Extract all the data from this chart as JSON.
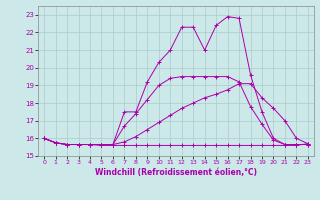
{
  "xlabel": "Windchill (Refroidissement éolien,°C)",
  "xlim": [
    -0.5,
    23.5
  ],
  "ylim": [
    15.0,
    23.5
  ],
  "yticks": [
    15,
    16,
    17,
    18,
    19,
    20,
    21,
    22,
    23
  ],
  "xticks": [
    0,
    1,
    2,
    3,
    4,
    5,
    6,
    7,
    8,
    9,
    10,
    11,
    12,
    13,
    14,
    15,
    16,
    17,
    18,
    19,
    20,
    21,
    22,
    23
  ],
  "background_color": "#cce8e8",
  "line_color": "#aa00aa",
  "grid_color": "#aacccc",
  "lines": [
    [
      16.0,
      15.75,
      15.65,
      15.65,
      15.65,
      15.6,
      15.6,
      15.6,
      15.6,
      15.6,
      15.6,
      15.6,
      15.6,
      15.6,
      15.6,
      15.6,
      15.6,
      15.6,
      15.6,
      15.6,
      15.6,
      15.6,
      15.6,
      15.7
    ],
    [
      16.0,
      15.75,
      15.65,
      15.65,
      15.65,
      15.65,
      15.65,
      15.8,
      16.1,
      16.5,
      16.9,
      17.3,
      17.7,
      18.0,
      18.3,
      18.5,
      18.75,
      19.1,
      19.1,
      18.3,
      17.7,
      17.0,
      16.0,
      15.7
    ],
    [
      16.0,
      15.75,
      15.65,
      15.65,
      15.65,
      15.65,
      15.65,
      16.7,
      17.4,
      18.2,
      19.0,
      19.4,
      19.5,
      19.5,
      19.5,
      19.5,
      19.5,
      19.2,
      17.8,
      16.8,
      15.9,
      15.65,
      15.65,
      15.65
    ],
    [
      16.0,
      15.75,
      15.65,
      15.65,
      15.65,
      15.65,
      15.65,
      17.5,
      17.5,
      19.2,
      20.3,
      21.0,
      22.3,
      22.3,
      21.0,
      22.4,
      22.9,
      22.8,
      19.6,
      17.5,
      16.0,
      15.65,
      15.65,
      15.65
    ]
  ]
}
